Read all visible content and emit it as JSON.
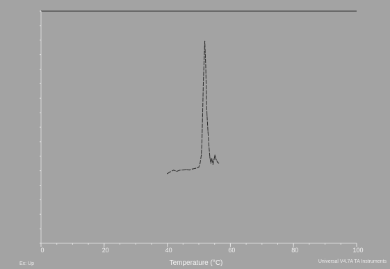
{
  "chart_data": {
    "type": "line",
    "title": "",
    "xlabel": "Temperature (°C)",
    "ylabel": "",
    "xlim": [
      0,
      100
    ],
    "ylim": [
      0,
      100
    ],
    "grid": false,
    "x_ticks": [
      "0",
      "20",
      "40",
      "60",
      "80",
      "100"
    ],
    "y_ticks": [],
    "series": [
      {
        "values": [
          [
            40.0,
            30.0
          ],
          [
            41.0,
            30.8
          ],
          [
            42.0,
            31.5
          ],
          [
            43.0,
            31.0
          ],
          [
            44.0,
            31.5
          ],
          [
            45.0,
            31.6
          ],
          [
            46.0,
            31.8
          ],
          [
            47.0,
            31.6
          ],
          [
            48.0,
            32.0
          ],
          [
            49.0,
            32.3
          ],
          [
            50.0,
            32.8
          ],
          [
            50.4,
            34.5
          ],
          [
            50.8,
            38.0
          ],
          [
            51.0,
            44.0
          ],
          [
            51.2,
            55.0
          ],
          [
            51.4,
            68.0
          ],
          [
            51.7,
            80.0
          ],
          [
            51.9,
            87.0
          ],
          [
            52.2,
            76.0
          ],
          [
            52.4,
            63.0
          ],
          [
            52.6,
            55.0
          ],
          [
            52.9,
            48.0
          ],
          [
            53.2,
            42.0
          ],
          [
            53.5,
            37.0
          ],
          [
            53.8,
            34.5
          ],
          [
            54.1,
            36.5
          ],
          [
            54.5,
            34.0
          ],
          [
            54.8,
            36.0
          ],
          [
            55.1,
            38.0
          ],
          [
            55.5,
            36.0
          ],
          [
            55.9,
            35.0
          ],
          [
            56.3,
            34.5
          ]
        ]
      }
    ]
  },
  "footer": {
    "left": "Ex: Up",
    "right": "Universal V4.7A TA Instruments"
  }
}
